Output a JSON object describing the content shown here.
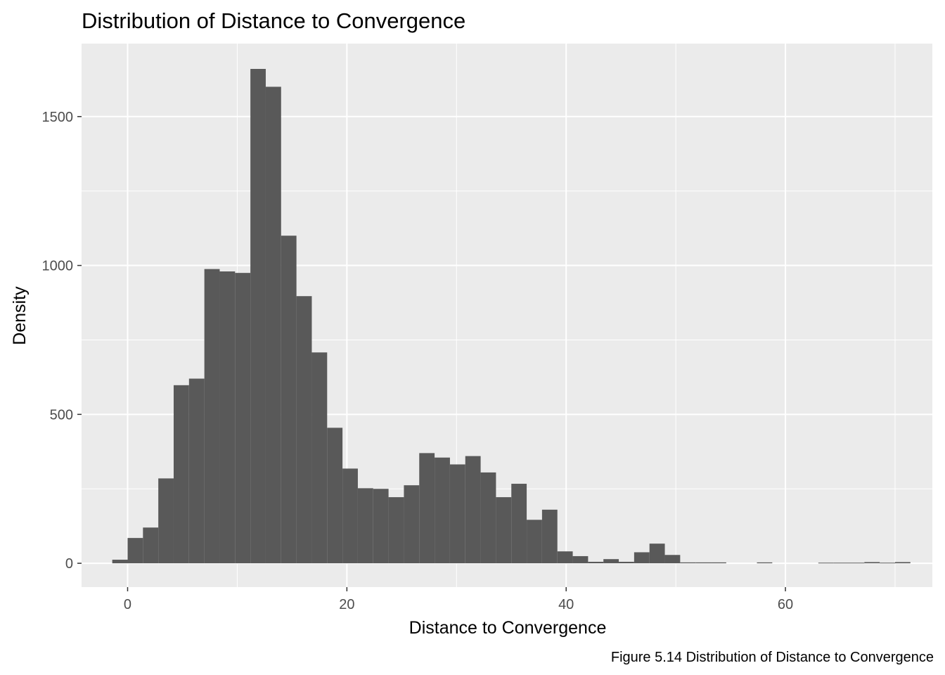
{
  "chart_data": {
    "type": "bar",
    "title": "Distribution of Distance to Convergence",
    "xlabel": "Distance to Convergence",
    "ylabel": "Density",
    "caption": "Figure 5.14 Distribution of Distance to Convergence",
    "xlim": [
      -4.2,
      73.4
    ],
    "ylim": [
      -80,
      1745
    ],
    "x_ticks": [
      0,
      20,
      40,
      60
    ],
    "x_tick_labels": [
      "0",
      "20",
      "40",
      "60"
    ],
    "y_ticks": [
      0,
      500,
      1000,
      1500
    ],
    "y_tick_labels": [
      "0",
      "500",
      "1000",
      "1500"
    ],
    "grid": true,
    "legend": "none",
    "colors": {
      "bar": "#595959",
      "panel": "#ebebeb",
      "grid": "#ffffff"
    },
    "bin_start": -1.4,
    "bin_width": 1.4,
    "values": [
      12,
      85,
      120,
      285,
      598,
      620,
      988,
      980,
      975,
      1660,
      1600,
      1100,
      897,
      708,
      455,
      318,
      252,
      250,
      222,
      262,
      370,
      355,
      332,
      360,
      305,
      222,
      267,
      146,
      180,
      40,
      24,
      5,
      14,
      5,
      37,
      66,
      28,
      3,
      3,
      3,
      0,
      0,
      3,
      0,
      0,
      0,
      2,
      2,
      2,
      4,
      2,
      4
    ]
  }
}
